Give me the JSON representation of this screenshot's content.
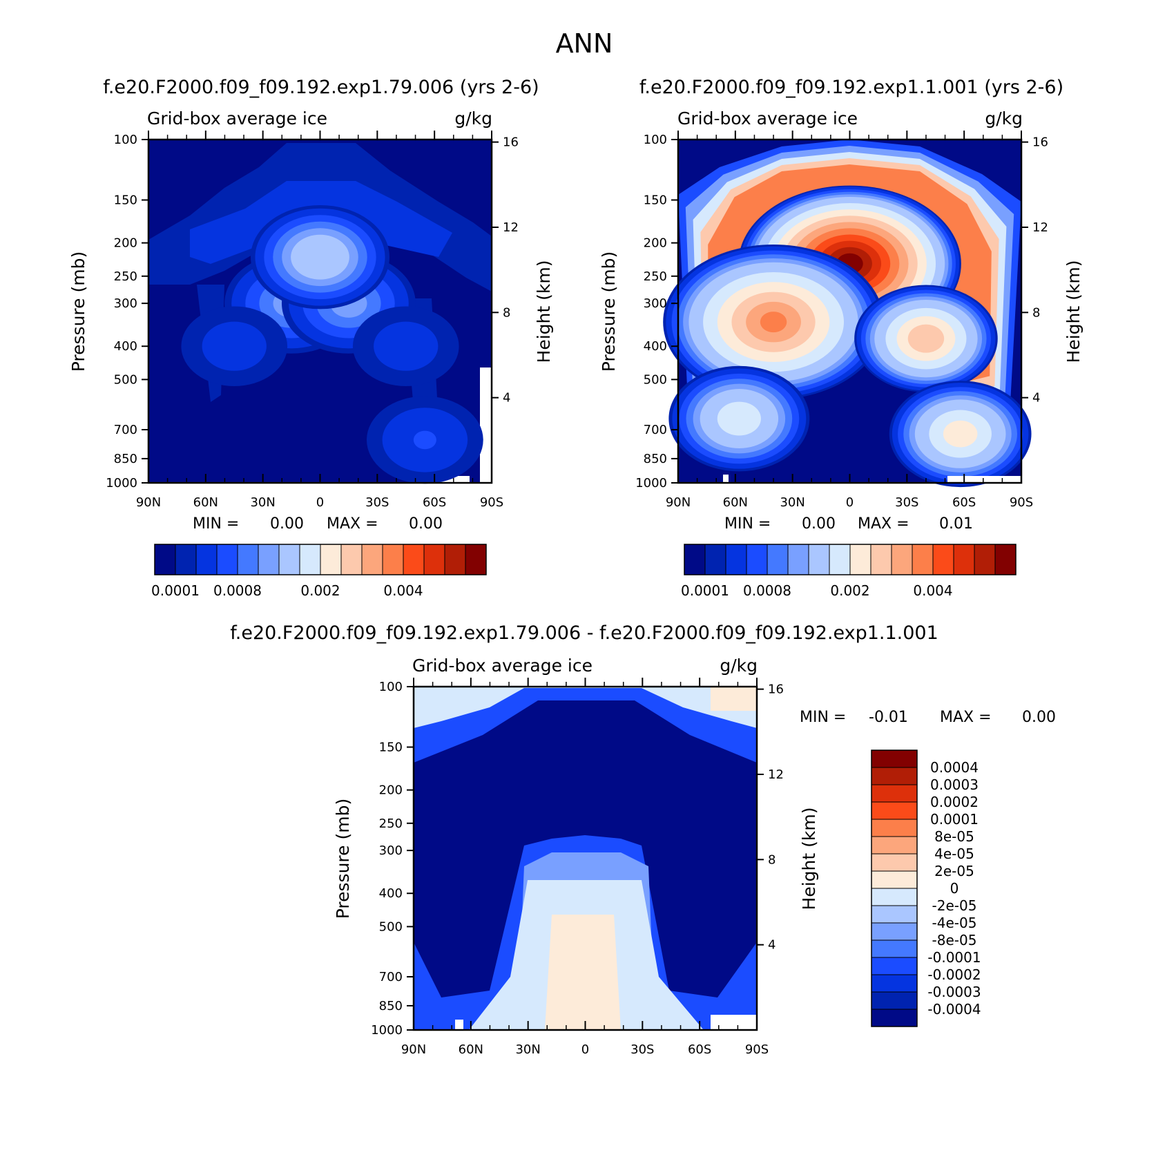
{
  "page": {
    "title": "ANN"
  },
  "palettes": {
    "ratio": [
      "#000a87",
      "#0023b0",
      "#0534e0",
      "#1b4cff",
      "#4479ff",
      "#79a0ff",
      "#aac6ff",
      "#d6e9fd",
      "#fdebd9",
      "#fdc9ad",
      "#fca67c",
      "#fc7f4a",
      "#fb4b19",
      "#dd300b",
      "#b11e06",
      "#820101"
    ],
    "diff": [
      "#820101",
      "#b11e06",
      "#dd300b",
      "#fb4b19",
      "#fc7f4a",
      "#fca67c",
      "#fdc9ad",
      "#fdebd9",
      "#d6e9fd",
      "#aac6ff",
      "#79a0ff",
      "#4479ff",
      "#1b4cff",
      "#0534e0",
      "#0023b0",
      "#000a87"
    ]
  },
  "chart_data": [
    {
      "id": "panel1",
      "type": "heatmap",
      "title": "f.e20.F2000.f09_f09.192.exp1.79.006 (yrs 2-6)",
      "subtitle_left": "Grid-box average ice",
      "subtitle_right": "g/kg",
      "ylabel": "Pressure (mb)",
      "y2label": "Height (km)",
      "xticks": [
        "90N",
        "60N",
        "30N",
        "0",
        "30S",
        "60S",
        "90S"
      ],
      "yticks": [
        "100",
        "150",
        "200",
        "250",
        "300",
        "400",
        "500",
        "700",
        "850",
        "1000"
      ],
      "y2ticks": [
        "16",
        "12",
        "8",
        "4"
      ],
      "min_label": "MIN =",
      "min_value": "0.00",
      "max_label": "MAX =",
      "max_value": "0.00",
      "colorbar_labels": [
        "0.0001",
        "0.0008",
        "0.002",
        "0.004"
      ],
      "blobs": [
        {
          "lat": 15,
          "p": 300,
          "v": 0.0009
        },
        {
          "lat": -15,
          "p": 300,
          "v": 0.0009
        },
        {
          "lat": 0,
          "p": 220,
          "v": 0.0014
        },
        {
          "lat": 45,
          "p": 400,
          "v": 0.0003
        },
        {
          "lat": -45,
          "p": 400,
          "v": 0.0003
        },
        {
          "lat": -55,
          "p": 750,
          "v": 0.0004
        }
      ]
    },
    {
      "id": "panel2",
      "type": "heatmap",
      "title": "f.e20.F2000.f09_f09.192.exp1.1.001 (yrs 2-6)",
      "subtitle_left": "Grid-box average ice",
      "subtitle_right": "g/kg",
      "ylabel": "Pressure (mb)",
      "y2label": "Height (km)",
      "xticks": [
        "90N",
        "60N",
        "30N",
        "0",
        "30S",
        "60S",
        "90S"
      ],
      "yticks": [
        "100",
        "150",
        "200",
        "250",
        "300",
        "400",
        "500",
        "700",
        "850",
        "1000"
      ],
      "y2ticks": [
        "16",
        "12",
        "8",
        "4"
      ],
      "min_label": "MIN =",
      "min_value": "0.00",
      "max_label": "MAX =",
      "max_value": "0.01",
      "colorbar_labels": [
        "0.0001",
        "0.0008",
        "0.002",
        "0.004"
      ],
      "blobs": [
        {
          "lat": 0,
          "p": 230,
          "v": 0.0055
        },
        {
          "lat": 40,
          "p": 340,
          "v": 0.0035
        },
        {
          "lat": -40,
          "p": 380,
          "v": 0.0028
        },
        {
          "lat": 58,
          "p": 650,
          "v": 0.0018
        },
        {
          "lat": -58,
          "p": 720,
          "v": 0.0022
        }
      ]
    },
    {
      "id": "panel3",
      "type": "heatmap",
      "title": "f.e20.F2000.f09_f09.192.exp1.79.006 - f.e20.F2000.f09_f09.192.exp1.1.001",
      "subtitle_left": "Grid-box average ice",
      "subtitle_right": "g/kg",
      "ylabel": "Pressure (mb)",
      "y2label": "Height (km)",
      "xticks": [
        "90N",
        "60N",
        "30N",
        "0",
        "30S",
        "60S",
        "90S"
      ],
      "yticks": [
        "100",
        "150",
        "200",
        "250",
        "300",
        "400",
        "500",
        "700",
        "850",
        "1000"
      ],
      "y2ticks": [
        "16",
        "12",
        "8",
        "4"
      ],
      "min_label": "MIN =",
      "min_value": "-0.01",
      "max_label": "MAX =",
      "max_value": "0.00",
      "colorbar_labels": [
        "0.0004",
        "0.0003",
        "0.0002",
        "0.0001",
        "8e-05",
        "4e-05",
        "2e-05",
        "0",
        "-2e-05",
        "-4e-05",
        "-8e-05",
        "-0.0001",
        "-0.0002",
        "-0.0003",
        "-0.0004"
      ]
    }
  ]
}
